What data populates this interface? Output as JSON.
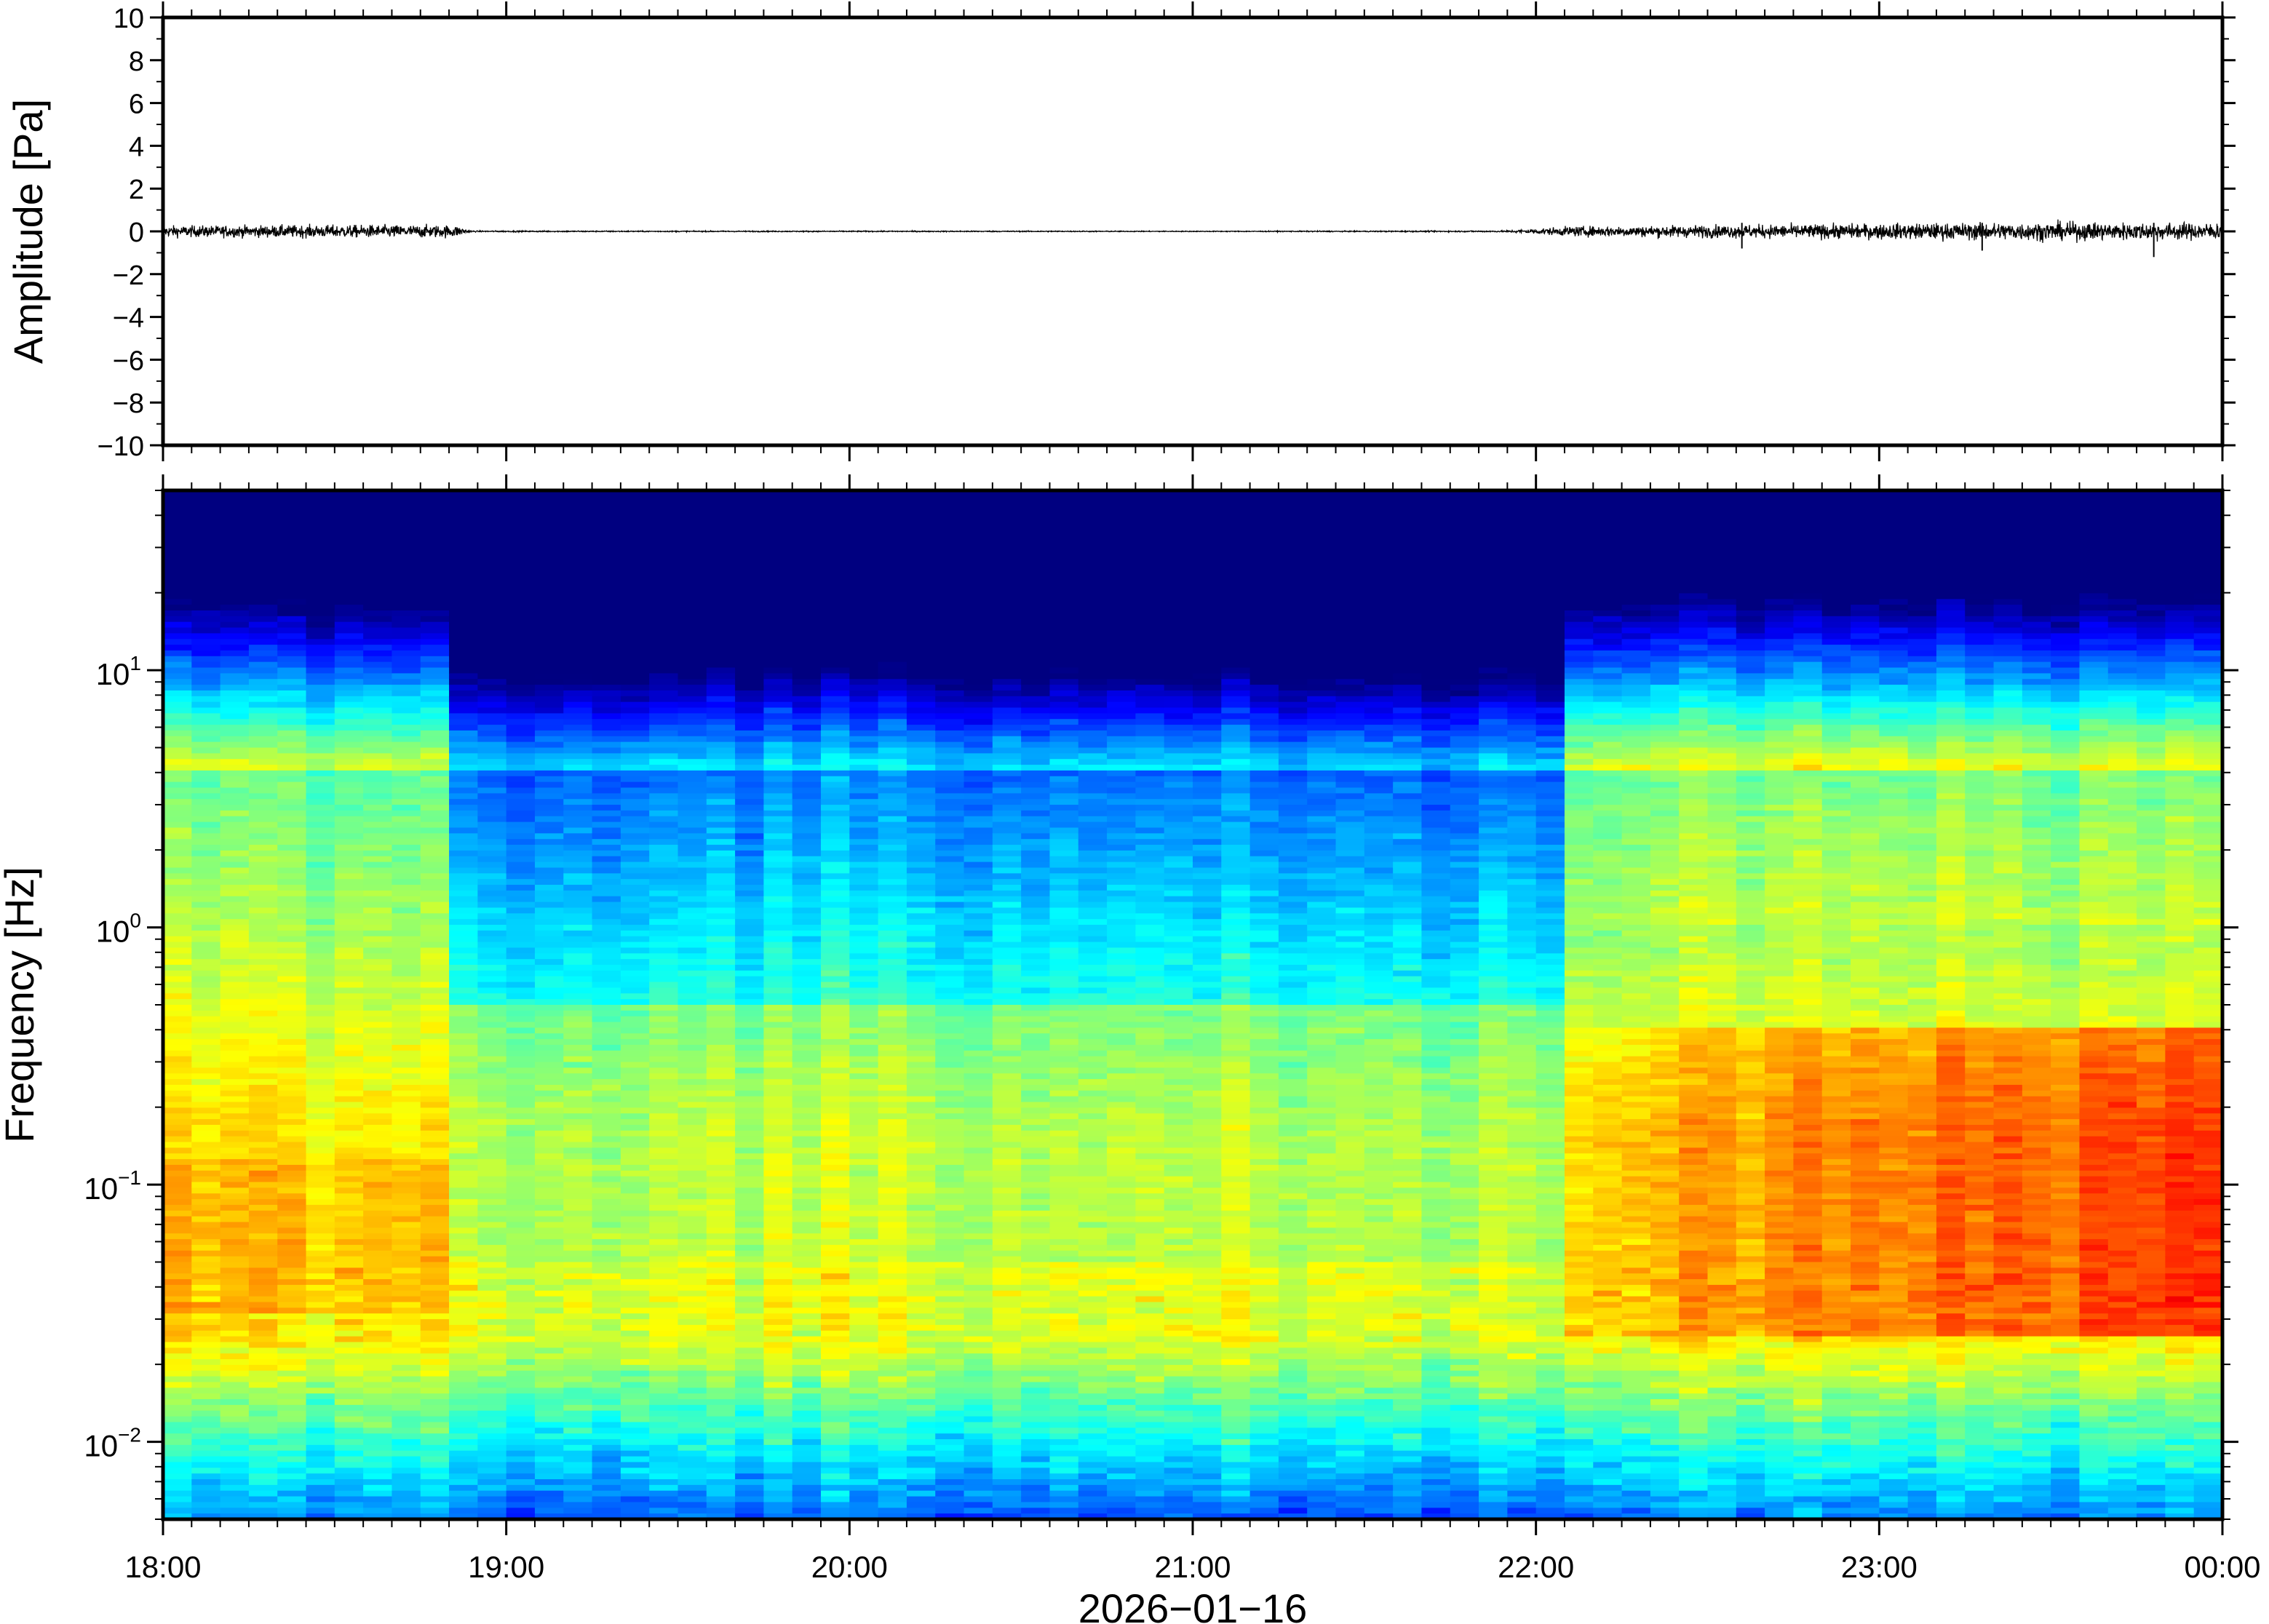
{
  "chart_data": [
    {
      "type": "line",
      "panel": "waveform",
      "ylabel": "Amplitude [Pa]",
      "xlabel": "",
      "ylim": [
        -10,
        10
      ],
      "y_ticks": [
        {
          "value": 10,
          "label": "10"
        },
        {
          "value": 8,
          "label": "8"
        },
        {
          "value": 6,
          "label": "6"
        },
        {
          "value": 4,
          "label": "4"
        },
        {
          "value": 2,
          "label": "2"
        },
        {
          "value": 0,
          "label": "0"
        },
        {
          "value": -2,
          "label": "−2"
        },
        {
          "value": -4,
          "label": "−4"
        },
        {
          "value": -6,
          "label": "−6"
        },
        {
          "value": -8,
          "label": "−8"
        },
        {
          "value": -10,
          "label": "−10"
        }
      ],
      "xlim_hours": [
        18,
        24
      ],
      "noise_envelope": {
        "x_hours": [
          18.0,
          18.5,
          18.85,
          18.9,
          19.5,
          20.5,
          21.0,
          21.9,
          22.1,
          22.5,
          23.0,
          23.5,
          24.0
        ],
        "amplitude_pa": [
          0.4,
          0.45,
          0.45,
          0.05,
          0.04,
          0.04,
          0.03,
          0.05,
          0.35,
          0.45,
          0.55,
          0.65,
          0.6
        ]
      },
      "spikes": [
        {
          "x_hours": 22.6,
          "y": -0.8
        },
        {
          "x_hours": 23.3,
          "y": -0.9
        },
        {
          "x_hours": 23.8,
          "y": -1.2
        }
      ],
      "line_color": "#000000"
    },
    {
      "type": "heatmap",
      "panel": "spectrogram",
      "ylabel": "Frequency [Hz]",
      "xlabel": "2026−01−16",
      "y_scale": "log",
      "ylim_hz": [
        0.005,
        50
      ],
      "y_ticks": [
        {
          "value": 0.01,
          "base": "10",
          "exp": "−2"
        },
        {
          "value": 0.1,
          "base": "10",
          "exp": "−1"
        },
        {
          "value": 1,
          "base": "10",
          "exp": "0"
        },
        {
          "value": 10,
          "base": "10",
          "exp": "1"
        }
      ],
      "x_ticks": [
        "18:00",
        "19:00",
        "20:00",
        "21:00",
        "22:00",
        "23:00",
        "00:00"
      ],
      "xlim_hours": [
        18,
        24
      ],
      "colormap": "jet",
      "colors": {
        "low": "#00007f",
        "high": "#ff2000"
      },
      "segments": [
        {
          "x_hours": [
            18.0,
            18.87
          ],
          "noise_level": "high"
        },
        {
          "x_hours": [
            18.87,
            22.05
          ],
          "noise_level": "low"
        },
        {
          "x_hours": [
            22.05,
            24.0
          ],
          "noise_level": "high",
          "peak_band_hz": [
            0.03,
            0.2
          ]
        }
      ]
    }
  ]
}
